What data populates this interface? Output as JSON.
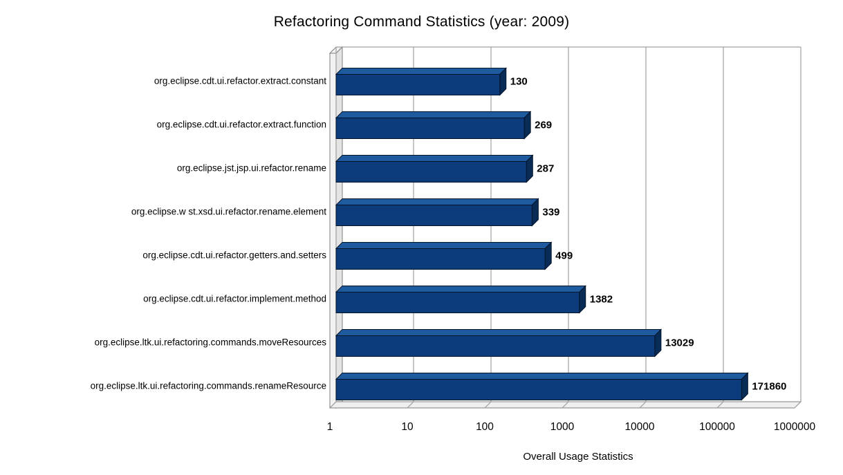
{
  "title": "Refactoring Command Statistics (year: 2009)",
  "chart_data": {
    "type": "bar",
    "orientation": "horizontal",
    "style": "3d",
    "x_scale": "log",
    "xlim": [
      1,
      1000000
    ],
    "x_ticks": [
      "1",
      "10",
      "100",
      "1000",
      "10000",
      "100000",
      "1000000"
    ],
    "xlabel": "Overall Usage Statistics",
    "categories": [
      "org.eclipse.cdt.ui.refactor.extract.constant",
      "org.eclipse.cdt.ui.refactor.extract.function",
      "org.eclipse.jst.jsp.ui.refactor.rename",
      "org.eclipse.w st.xsd.ui.refactor.rename.element",
      "org.eclipse.cdt.ui.refactor.getters.and.setters",
      "org.eclipse.cdt.ui.refactor.implement.method",
      "org.eclipse.ltk.ui.refactoring.commands.moveResources",
      "org.eclipse.ltk.ui.refactoring.commands.renameResource"
    ],
    "values": [
      130,
      269,
      287,
      339,
      499,
      1382,
      13029,
      171860
    ],
    "value_labels": [
      "130",
      "269",
      "287",
      "339",
      "499",
      "1382",
      "13029",
      "171860"
    ],
    "legend": null,
    "grid": true,
    "colors": {
      "bar_front": "#0c3c7c",
      "bar_top": "#1e5b9e",
      "bar_side": "#082c55",
      "bar_outline": "#03142b",
      "gridline": "#a0a0a0",
      "wall_outline": "#7f7f7f",
      "wall_fill": "#f2f2f2",
      "floor_fill": "#efefef",
      "text": "#000000"
    }
  }
}
